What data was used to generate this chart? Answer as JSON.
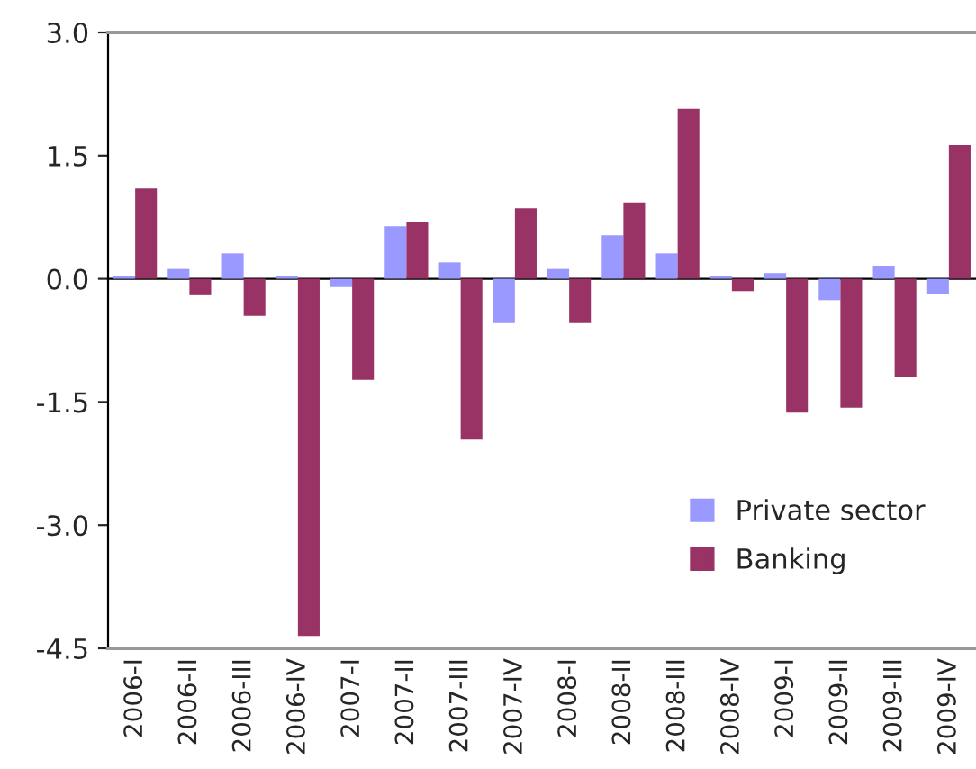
{
  "chart_data": {
    "type": "bar",
    "categories": [
      "2006-I",
      "2006-II",
      "2006-III",
      "2006-IV",
      "2007-I",
      "2007-II",
      "2007-III",
      "2007-IV",
      "2008-I",
      "2008-II",
      "2008-III",
      "2008-IV",
      "2009-I",
      "2009-II",
      "2009-III",
      "2009-IV"
    ],
    "series": [
      {
        "name": "Private sector",
        "color": "#9999ff",
        "values": [
          0.03,
          0.12,
          0.31,
          0.03,
          -0.1,
          0.64,
          0.2,
          -0.54,
          0.12,
          0.53,
          0.31,
          0.03,
          0.07,
          -0.26,
          0.16,
          -0.19
        ]
      },
      {
        "name": "Banking",
        "color": "#993366",
        "values": [
          1.1,
          -0.2,
          -0.45,
          -4.35,
          -1.23,
          0.69,
          -1.96,
          0.86,
          -0.54,
          0.93,
          2.07,
          -0.15,
          -1.63,
          -1.57,
          -1.2,
          1.63
        ]
      }
    ],
    "ylim": [
      -4.5,
      3.0
    ],
    "yticks": [
      {
        "value": -4.5,
        "label": "-4.5"
      },
      {
        "value": -3.0,
        "label": "-3.0"
      },
      {
        "value": -1.5,
        "label": "-1.5"
      },
      {
        "value": 0.0,
        "label": "0.0"
      },
      {
        "value": 1.5,
        "label": "1.5"
      },
      {
        "value": 3.0,
        "label": "3.0"
      }
    ],
    "ref_lines": [
      {
        "axis": "y",
        "value": 0,
        "color": "#000000"
      }
    ],
    "grid": false,
    "legend": "bottom right"
  }
}
